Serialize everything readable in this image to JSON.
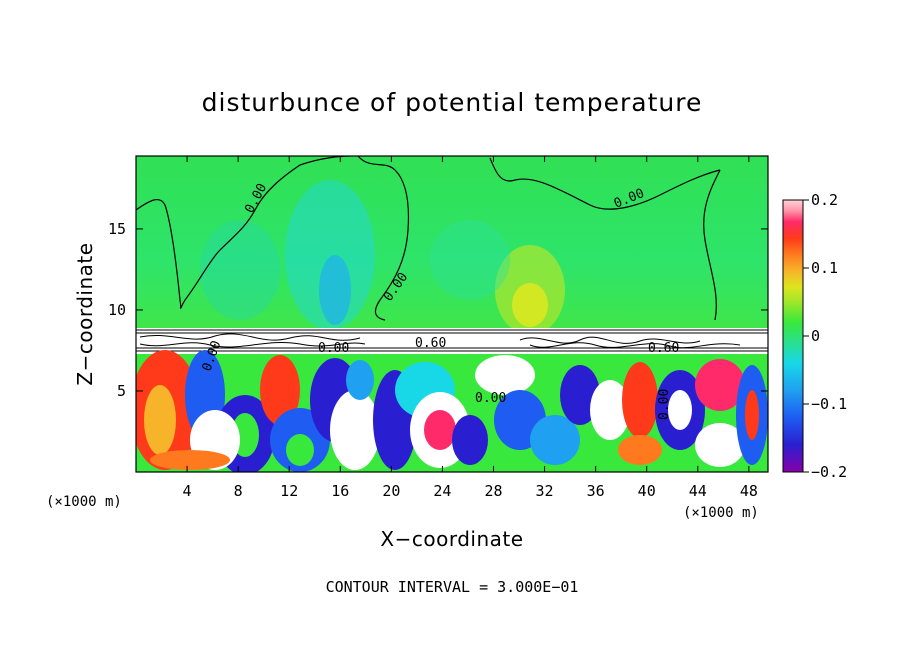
{
  "chart_data": {
    "type": "heatmap",
    "title": "disturbunce of potential temperature",
    "xlabel": "X−coordinate",
    "ylabel": "Z−coordinate",
    "x_unit": "(×1000 m)",
    "x_unit_right": "(×1000 m)",
    "xlim": [
      0,
      49.5
    ],
    "ylim": [
      0,
      19.5
    ],
    "x_ticks": [
      4,
      8,
      12,
      16,
      20,
      24,
      28,
      32,
      36,
      40,
      44,
      48
    ],
    "x_tick_labels": [
      "4",
      "8",
      "12",
      "16",
      "20",
      "24",
      "28",
      "32",
      "36",
      "40",
      "44",
      "48"
    ],
    "y_ticks": [
      5,
      10,
      15
    ],
    "y_tick_labels": [
      "5",
      "10",
      "15"
    ],
    "colorbar": {
      "range": [
        -0.2,
        0.2
      ],
      "ticks": [
        0.2,
        0.1,
        0,
        -0.1,
        -0.2
      ],
      "tick_labels": [
        "0.2",
        "0.1",
        "0",
        "−0.1",
        "−0.2"
      ],
      "colors": [
        "#8800aa",
        "#2a1fd0",
        "#1e5cf2",
        "#1fa0f0",
        "#18d8e8",
        "#2ae08a",
        "#38e83c",
        "#9be62a",
        "#dee51e",
        "#f7b32a",
        "#ff7a1f",
        "#ff3a1a",
        "#ff2a6a",
        "#ff94a8",
        "#ffd2d8"
      ]
    },
    "contour_labels": [
      "0.00",
      "0.00",
      "0.00",
      "0.00",
      "0.60",
      "0.60",
      "0.00",
      "0.00",
      "0.00"
    ],
    "contour_interval_text": "CONTOUR INTERVAL = 3.000E−01"
  }
}
